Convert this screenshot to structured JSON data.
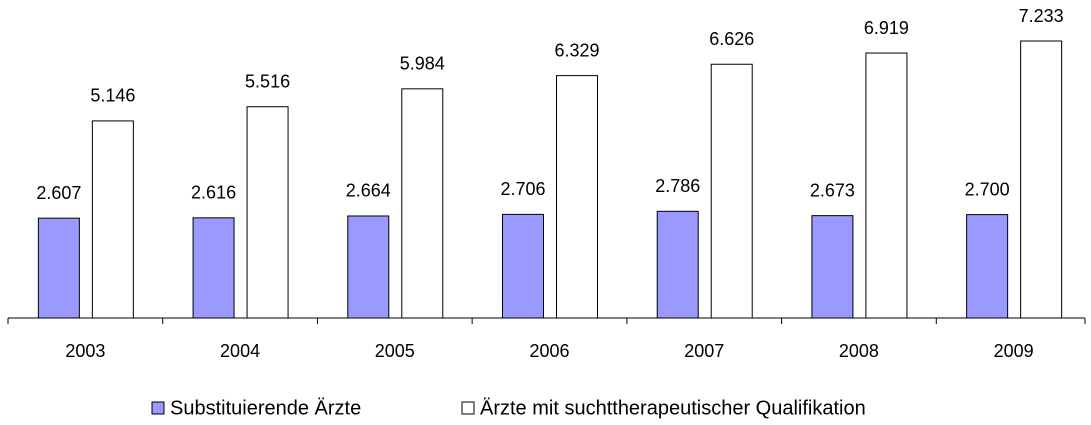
{
  "chart_data": {
    "type": "bar",
    "categories": [
      "2003",
      "2004",
      "2005",
      "2006",
      "2007",
      "2008",
      "2009"
    ],
    "series": [
      {
        "name": "Substituierende Ärzte",
        "color": "#9999ff",
        "values": [
          2607,
          2616,
          2664,
          2706,
          2786,
          2673,
          2700
        ],
        "value_labels": [
          "2.607",
          "2.616",
          "2.664",
          "2.706",
          "2.786",
          "2.673",
          "2.700"
        ]
      },
      {
        "name": "Ärzte mit suchttherapeutischer Qualifikation",
        "color": "#ffffff",
        "values": [
          5146,
          5516,
          5984,
          6329,
          6626,
          6919,
          7233
        ],
        "value_labels": [
          "5.146",
          "5.516",
          "5.984",
          "6.329",
          "6.626",
          "6.919",
          "7.233"
        ]
      }
    ],
    "legend": "bottom"
  }
}
